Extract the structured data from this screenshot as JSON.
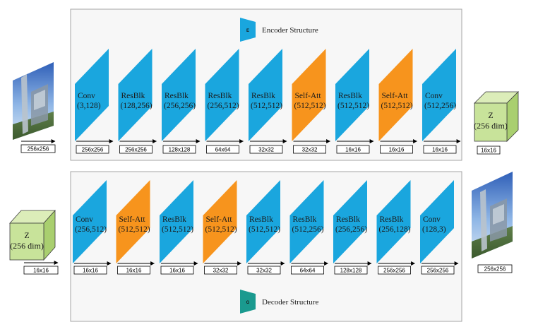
{
  "colors": {
    "resblk": "#1aa6de",
    "attention": "#f7941d",
    "encoder_badge": "#1aa6de",
    "decoder_badge": "#1a9a8f",
    "latent": "#c8e39a"
  },
  "encoder": {
    "badge_letter": "E",
    "title": "Encoder Structure",
    "input_resolution": "256x256",
    "latent": {
      "symbol": "Z",
      "dims": "(256 dim)",
      "resolution": "16x16"
    },
    "blocks": [
      {
        "type": "conv",
        "name": "Conv",
        "params": "(3,128)",
        "resolution": "256x256"
      },
      {
        "type": "res",
        "name": "ResBlk",
        "params": "(128,256)",
        "resolution": "256x256"
      },
      {
        "type": "res",
        "name": "ResBlk",
        "params": "(256,256)",
        "resolution": "128x128"
      },
      {
        "type": "res",
        "name": "ResBlk",
        "params": "(256,512)",
        "resolution": "64x64"
      },
      {
        "type": "res",
        "name": "ResBlk",
        "params": "(512,512)",
        "resolution": "32x32"
      },
      {
        "type": "att",
        "name": "Self-Att",
        "params": "(512,512)",
        "resolution": "32x32"
      },
      {
        "type": "res",
        "name": "ResBlk",
        "params": "(512,512)",
        "resolution": "16x16"
      },
      {
        "type": "att",
        "name": "Self-Att",
        "params": "(512,512)",
        "resolution": "16x16"
      },
      {
        "type": "conv",
        "name": "Conv",
        "params": "(512,256)",
        "resolution": "16x16"
      }
    ]
  },
  "decoder": {
    "badge_letter": "G",
    "title": "Decoder Structure",
    "output_resolution": "256x256",
    "latent": {
      "symbol": "Z",
      "dims": "(256 dim)",
      "resolution": "16x16"
    },
    "blocks": [
      {
        "type": "conv",
        "name": "Conv",
        "params": "(256,512)",
        "resolution": "16x16"
      },
      {
        "type": "att",
        "name": "Self-Att",
        "params": "(512,512)",
        "resolution": "16x16"
      },
      {
        "type": "res",
        "name": "ResBlk",
        "params": "(512,512)",
        "resolution": "16x16"
      },
      {
        "type": "att",
        "name": "Self-Att",
        "params": "(512,512)",
        "resolution": "32x32"
      },
      {
        "type": "res",
        "name": "ResBlk",
        "params": "(512,512)",
        "resolution": "32x32"
      },
      {
        "type": "res",
        "name": "ResBlk",
        "params": "(512,256)",
        "resolution": "64x64"
      },
      {
        "type": "res",
        "name": "ResBlk",
        "params": "(256,256)",
        "resolution": "128x128"
      },
      {
        "type": "res",
        "name": "ResBlk",
        "params": "(256,128)",
        "resolution": "256x256"
      },
      {
        "type": "conv",
        "name": "Conv",
        "params": "(128,3)",
        "resolution": "256x256"
      }
    ]
  }
}
